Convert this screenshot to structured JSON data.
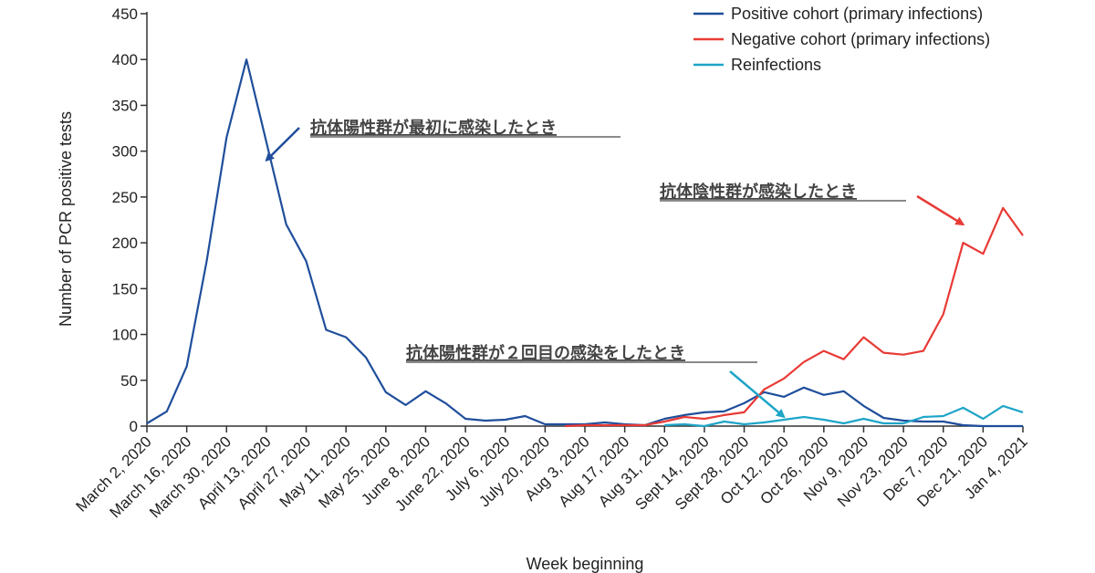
{
  "chart_data": {
    "type": "line",
    "title": "",
    "xlabel": "Week beginning",
    "ylabel": "Number of PCR positive tests",
    "ylim": [
      0,
      450
    ],
    "yticks": [
      0,
      50,
      100,
      150,
      200,
      250,
      300,
      350,
      400,
      450
    ],
    "grid": false,
    "legend_position": "top-right",
    "x": [
      "March 2, 2020",
      "March 9, 2020",
      "March 16, 2020",
      "March 23, 2020",
      "March 30, 2020",
      "April 6, 2020",
      "April 13, 2020",
      "April 20, 2020",
      "April 27, 2020",
      "May 4, 2020",
      "May 11, 2020",
      "May 18, 2020",
      "May 25, 2020",
      "June 1, 2020",
      "June 8, 2020",
      "June 15, 2020",
      "June 22, 2020",
      "June 29, 2020",
      "July 6, 2020",
      "July 13, 2020",
      "July 20, 2020",
      "July 27, 2020",
      "Aug 3, 2020",
      "Aug 10, 2020",
      "Aug 17, 2020",
      "Aug 24, 2020",
      "Aug 31, 2020",
      "Sept 7, 2020",
      "Sept 14, 2020",
      "Sept 21, 2020",
      "Sept 28, 2020",
      "Oct 5, 2020",
      "Oct 12, 2020",
      "Oct 19, 2020",
      "Oct 26, 2020",
      "Nov 2, 2020",
      "Nov 9, 2020",
      "Nov 16, 2020",
      "Nov 23, 2020",
      "Nov 30, 2020",
      "Dec 7, 2020",
      "Dec 14, 2020",
      "Dec 21, 2020",
      "Dec 28, 2020",
      "Jan 4, 2021"
    ],
    "tick_labels": [
      "March 2, 2020",
      "March 16, 2020",
      "March 30, 2020",
      "April 13, 2020",
      "April 27, 2020",
      "May 11, 2020",
      "May 25, 2020",
      "June 8, 2020",
      "June 22, 2020",
      "July 6, 2020",
      "July 20, 2020",
      "Aug 3, 2020",
      "Aug 17, 2020",
      "Aug 31, 2020",
      "Sept 14, 2020",
      "Sept 28, 2020",
      "Oct 12, 2020",
      "Oct 26, 2020",
      "Nov 9, 2020",
      "Nov 23, 2020",
      "Dec 7, 2020",
      "Dec 21, 2020",
      "Jan 4, 2021"
    ],
    "series": [
      {
        "name": "Positive cohort (primary infections)",
        "color": "#1f4e9b",
        "values": [
          3,
          16,
          65,
          180,
          315,
          400,
          310,
          220,
          180,
          105,
          97,
          75,
          37,
          23,
          38,
          25,
          8,
          6,
          7,
          11,
          2,
          2,
          2,
          4,
          2,
          1,
          8,
          12,
          15,
          16,
          25,
          37,
          32,
          42,
          34,
          38,
          22,
          9,
          6,
          5,
          5,
          1,
          0,
          0,
          0
        ]
      },
      {
        "name": "Negative cohort (primary infections)",
        "color": "#e83a35",
        "values": [
          null,
          null,
          null,
          null,
          null,
          null,
          null,
          null,
          null,
          null,
          null,
          null,
          null,
          null,
          null,
          null,
          null,
          null,
          null,
          null,
          null,
          0,
          1,
          1,
          1,
          1,
          5,
          10,
          8,
          12,
          15,
          40,
          52,
          70,
          82,
          73,
          97,
          80,
          78,
          82,
          122,
          200,
          188,
          238,
          208
        ]
      },
      {
        "name": "Reinfections",
        "color": "#1ea5c8",
        "values": [
          null,
          null,
          null,
          null,
          null,
          null,
          null,
          null,
          null,
          null,
          null,
          null,
          null,
          null,
          null,
          null,
          null,
          null,
          null,
          null,
          null,
          null,
          null,
          null,
          null,
          null,
          1,
          2,
          0,
          5,
          2,
          4,
          7,
          10,
          7,
          3,
          8,
          3,
          3,
          10,
          11,
          20,
          8,
          22,
          15
        ]
      }
    ],
    "annotations": [
      {
        "text": "抗体陽性群が最初に感染したとき",
        "color": "#1f4e9b",
        "points_to": {
          "x": "April 13, 2020",
          "y": 290
        }
      },
      {
        "text": "抗体陰性群が感染したとき",
        "color": "#e83a35",
        "points_to": {
          "x": "Dec 14, 2020",
          "y": 220
        }
      },
      {
        "text": "抗体陽性群が２回目の感染をしたとき",
        "color": "#1ea5c8",
        "points_to": {
          "x": "Oct 12, 2020",
          "y": 10
        }
      }
    ]
  }
}
